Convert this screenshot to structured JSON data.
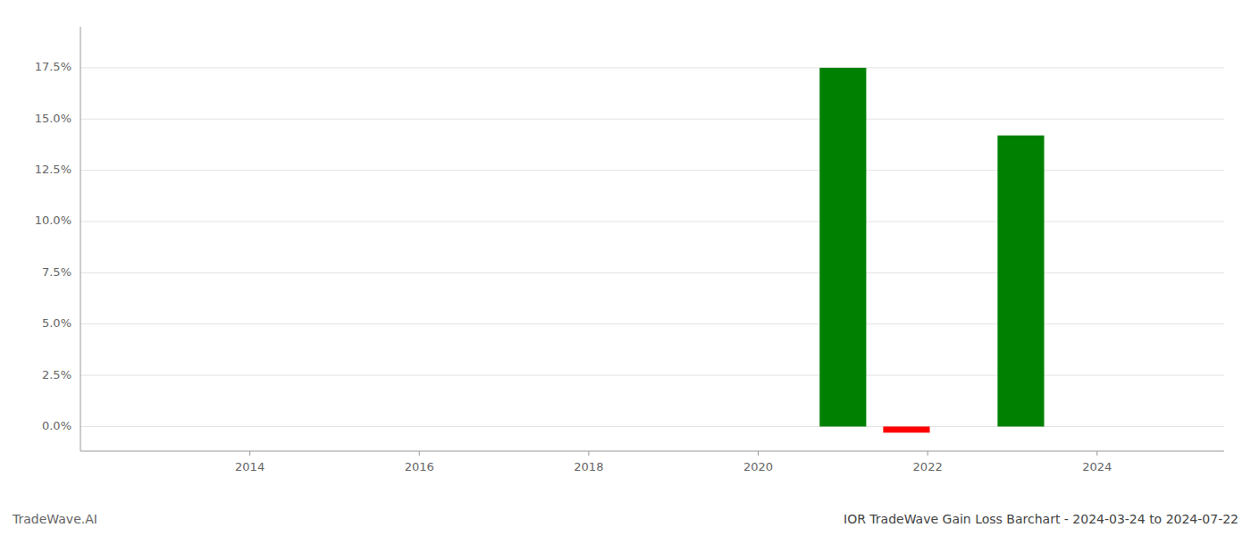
{
  "chart_data": {
    "type": "bar",
    "title": "IOR TradeWave Gain Loss Barchart - 2024-03-24 to 2024-07-22",
    "annotations": [
      "TradeWave.AI"
    ],
    "x": [
      2021.0,
      2021.75,
      2023.1
    ],
    "values": [
      0.175,
      -0.003,
      0.142
    ],
    "colors": [
      "#008000",
      "#ff0000",
      "#008000"
    ],
    "xlim": [
      2012.0,
      2025.5
    ],
    "xticks": [
      2014,
      2016,
      2018,
      2020,
      2022,
      2024
    ],
    "ylim": [
      -0.012,
      0.195
    ],
    "yticks": [
      {
        "value": 0.0,
        "label": "0.0%"
      },
      {
        "value": 0.025,
        "label": "2.5%"
      },
      {
        "value": 0.05,
        "label": "5.0%"
      },
      {
        "value": 0.075,
        "label": "7.5%"
      },
      {
        "value": 0.1,
        "label": "10.0%"
      },
      {
        "value": 0.125,
        "label": "12.5%"
      },
      {
        "value": 0.15,
        "label": "15.0%"
      },
      {
        "value": 0.175,
        "label": "17.5%"
      }
    ],
    "grid": true
  }
}
